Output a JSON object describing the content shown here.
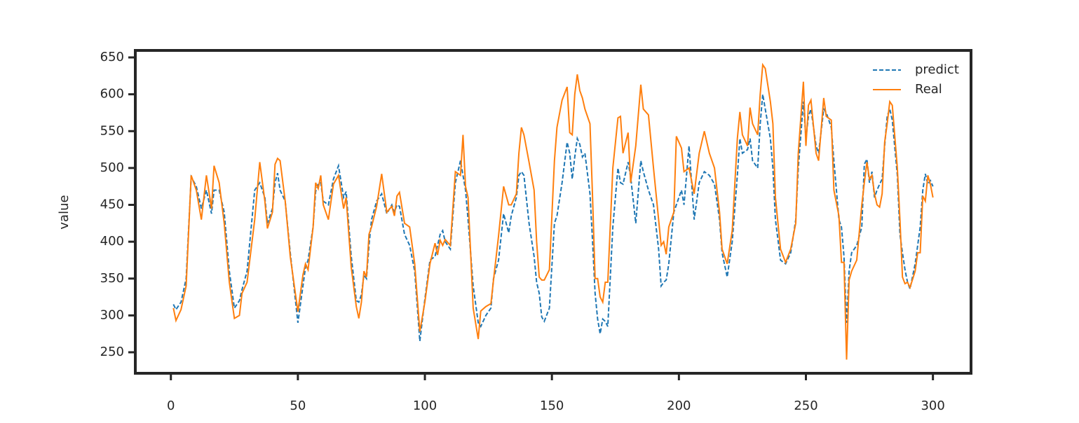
{
  "chart_data": {
    "type": "line",
    "ylabel": "value",
    "x": [
      1,
      2,
      4,
      6,
      8,
      10,
      12,
      14,
      16,
      17,
      19,
      21,
      23,
      25,
      27,
      28,
      30,
      33,
      35,
      37,
      38,
      40,
      41,
      42,
      43,
      45,
      47,
      50,
      52,
      53,
      54,
      56,
      57,
      58,
      59,
      60,
      62,
      64,
      66,
      68,
      69,
      71,
      73,
      74,
      75,
      76,
      77,
      78,
      79,
      81,
      83,
      85,
      87,
      88,
      89,
      90,
      92,
      94,
      96,
      98,
      100,
      102,
      104,
      105,
      106,
      107,
      108,
      110,
      112,
      114,
      115,
      116,
      117,
      119,
      121,
      122,
      124,
      126,
      127,
      129,
      131,
      133,
      134,
      136,
      137,
      138,
      139,
      141,
      143,
      144,
      145,
      146,
      147,
      149,
      151,
      152,
      154,
      156,
      157,
      158,
      159,
      160,
      161,
      162,
      163,
      165,
      166,
      167,
      168,
      169,
      170,
      171,
      172,
      174,
      176,
      177,
      178,
      180,
      181,
      183,
      185,
      186,
      188,
      190,
      192,
      193,
      194,
      195,
      196,
      198,
      199,
      201,
      202,
      204,
      206,
      208,
      210,
      212,
      214,
      216,
      217,
      219,
      221,
      223,
      224,
      225,
      227,
      228,
      229,
      231,
      232,
      233,
      234,
      236,
      237,
      238,
      240,
      242,
      244,
      246,
      247,
      249,
      250,
      251,
      252,
      254,
      255,
      257,
      258,
      260,
      261,
      263,
      264,
      265,
      266,
      267,
      268,
      270,
      272,
      273,
      274,
      275,
      276,
      277,
      278,
      279,
      280,
      281,
      282,
      283,
      284,
      286,
      287,
      288,
      289,
      290,
      291,
      293,
      294,
      295,
      296,
      297,
      298,
      299,
      300
    ],
    "series": [
      {
        "name": "predict",
        "color": "#1f77b4",
        "linestyle": "dashed",
        "values": [
          315,
          308,
          318,
          350,
          488,
          475,
          445,
          470,
          438,
          470,
          470,
          440,
          360,
          310,
          320,
          335,
          360,
          470,
          480,
          460,
          425,
          445,
          480,
          493,
          470,
          455,
          385,
          290,
          340,
          365,
          375,
          420,
          468,
          478,
          480,
          455,
          450,
          485,
          503,
          460,
          468,
          380,
          320,
          318,
          328,
          355,
          350,
          395,
          430,
          455,
          465,
          438,
          450,
          440,
          450,
          448,
          410,
          395,
          360,
          265,
          322,
          375,
          380,
          395,
          410,
          415,
          400,
          390,
          480,
          510,
          490,
          470,
          430,
          340,
          290,
          285,
          300,
          310,
          350,
          375,
          438,
          412,
          435,
          460,
          490,
          495,
          490,
          425,
          380,
          345,
          330,
          298,
          292,
          310,
          425,
          435,
          480,
          535,
          520,
          485,
          515,
          540,
          532,
          515,
          520,
          465,
          400,
          330,
          295,
          275,
          295,
          292,
          285,
          420,
          500,
          480,
          478,
          508,
          488,
          425,
          510,
          495,
          470,
          450,
          390,
          340,
          345,
          348,
          370,
          440,
          450,
          470,
          450,
          530,
          430,
          480,
          495,
          490,
          478,
          430,
          385,
          352,
          400,
          490,
          540,
          520,
          525,
          540,
          510,
          500,
          560,
          600,
          580,
          540,
          500,
          430,
          375,
          370,
          385,
          430,
          500,
          590,
          540,
          570,
          580,
          530,
          520,
          580,
          575,
          555,
          510,
          430,
          420,
          380,
          290,
          360,
          385,
          395,
          420,
          505,
          512,
          480,
          495,
          460,
          470,
          478,
          485,
          530,
          570,
          580,
          565,
          490,
          410,
          385,
          362,
          345,
          336,
          370,
          395,
          420,
          470,
          492,
          478,
          483,
          475
        ]
      },
      {
        "name": "Real",
        "color": "#ff7f0e",
        "linestyle": "solid",
        "values": [
          310,
          293,
          308,
          340,
          490,
          470,
          430,
          490,
          445,
          503,
          480,
          425,
          345,
          296,
          300,
          330,
          345,
          430,
          508,
          455,
          418,
          440,
          505,
          513,
          510,
          455,
          380,
          305,
          355,
          370,
          362,
          420,
          480,
          472,
          490,
          450,
          430,
          478,
          490,
          445,
          460,
          365,
          312,
          296,
          318,
          360,
          352,
          410,
          420,
          448,
          492,
          440,
          448,
          435,
          462,
          467,
          425,
          420,
          370,
          278,
          318,
          370,
          398,
          382,
          402,
          395,
          403,
          395,
          495,
          490,
          545,
          475,
          460,
          310,
          268,
          306,
          312,
          316,
          348,
          408,
          475,
          450,
          450,
          465,
          520,
          555,
          545,
          508,
          470,
          400,
          352,
          348,
          348,
          362,
          510,
          555,
          592,
          610,
          548,
          545,
          600,
          627,
          605,
          595,
          580,
          560,
          460,
          350,
          350,
          325,
          318,
          345,
          345,
          500,
          568,
          570,
          520,
          548,
          480,
          530,
          613,
          580,
          572,
          500,
          430,
          395,
          400,
          383,
          420,
          440,
          543,
          527,
          495,
          500,
          465,
          520,
          550,
          520,
          500,
          440,
          390,
          370,
          415,
          540,
          576,
          545,
          530,
          582,
          560,
          545,
          600,
          640,
          635,
          590,
          560,
          460,
          390,
          372,
          390,
          425,
          520,
          617,
          530,
          585,
          592,
          520,
          510,
          595,
          570,
          565,
          470,
          435,
          372,
          372,
          240,
          348,
          360,
          375,
          450,
          480,
          508,
          485,
          490,
          465,
          450,
          447,
          465,
          535,
          560,
          590,
          585,
          500,
          430,
          352,
          343,
          345,
          338,
          360,
          385,
          385,
          462,
          455,
          490,
          478,
          460
        ]
      }
    ],
    "xlim": [
      -14,
      315
    ],
    "ylim": [
      221.5,
      659.5
    ],
    "xticks": [
      0,
      50,
      100,
      150,
      200,
      250,
      300
    ],
    "yticks": [
      250,
      300,
      350,
      400,
      450,
      500,
      550,
      600,
      650
    ],
    "legend": "upper right",
    "grid": false
  }
}
